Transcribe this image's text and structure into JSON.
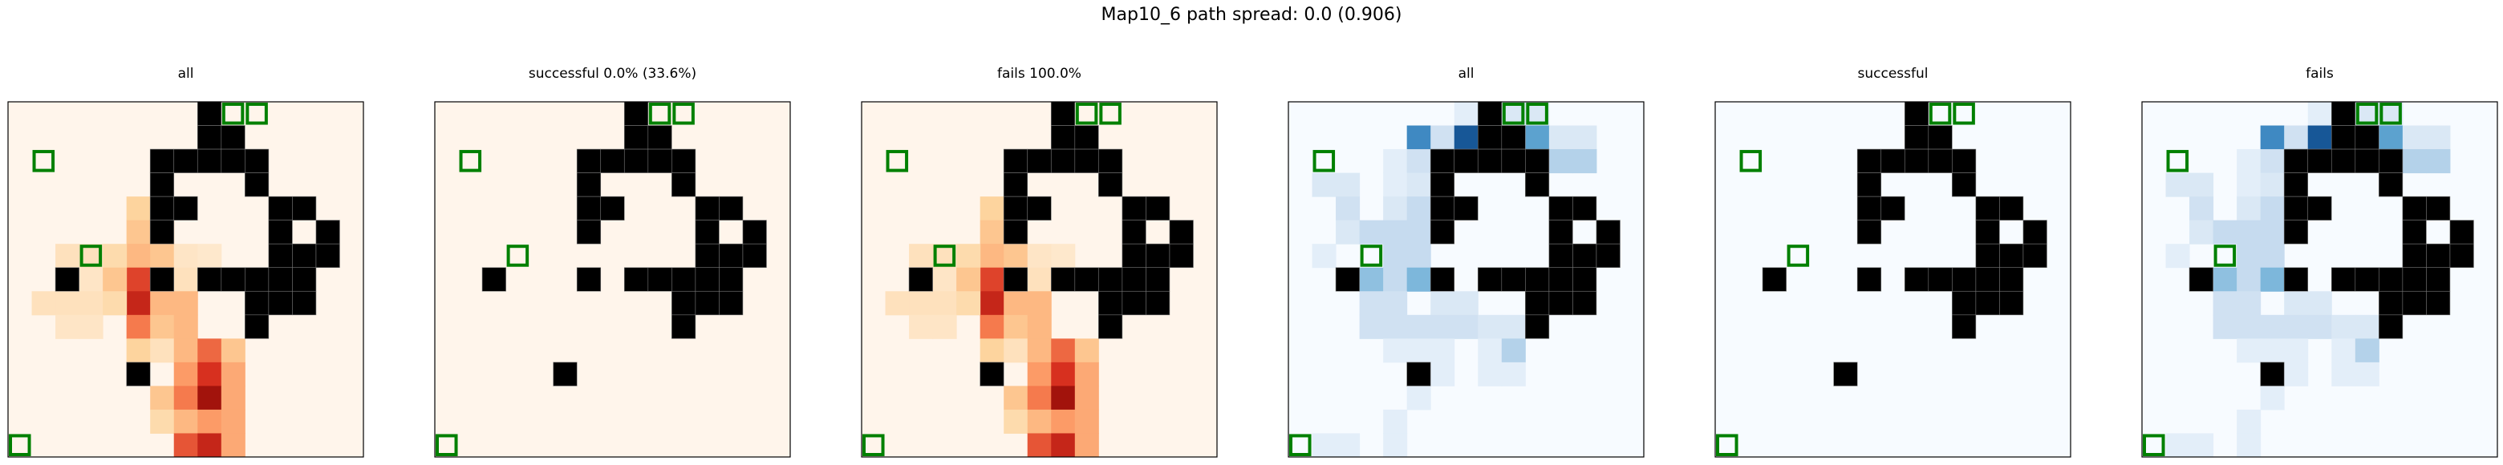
{
  "suptitle": "Map10_6 path spread: 0.0 (0.906)",
  "chart_data": {
    "type": "heatmap",
    "grid_size": 15,
    "walls": [
      [
        0,
        8
      ],
      [
        1,
        8
      ],
      [
        1,
        9
      ],
      [
        2,
        6
      ],
      [
        2,
        7
      ],
      [
        2,
        8
      ],
      [
        2,
        9
      ],
      [
        2,
        10
      ],
      [
        3,
        6
      ],
      [
        3,
        10
      ],
      [
        4,
        6
      ],
      [
        4,
        7
      ],
      [
        4,
        11
      ],
      [
        4,
        12
      ],
      [
        5,
        6
      ],
      [
        5,
        11
      ],
      [
        5,
        13
      ],
      [
        6,
        11
      ],
      [
        6,
        12
      ],
      [
        6,
        13
      ],
      [
        7,
        2
      ],
      [
        7,
        6
      ],
      [
        7,
        8
      ],
      [
        7,
        9
      ],
      [
        7,
        10
      ],
      [
        7,
        11
      ],
      [
        7,
        12
      ],
      [
        8,
        10
      ],
      [
        8,
        11
      ],
      [
        8,
        12
      ],
      [
        9,
        10
      ],
      [
        11,
        5
      ]
    ],
    "markers": [
      [
        0,
        9
      ],
      [
        0,
        10
      ],
      [
        2,
        1
      ],
      [
        6,
        3
      ],
      [
        14,
        0
      ]
    ],
    "panels": [
      {
        "title": "all",
        "colormap": "reds",
        "cells": [
          [
            4,
            5,
            0.25
          ],
          [
            5,
            5,
            0.3
          ],
          [
            6,
            5,
            0.35
          ],
          [
            7,
            5,
            0.7
          ],
          [
            8,
            5,
            0.8
          ],
          [
            8,
            6,
            0.35
          ],
          [
            4,
            6,
            0.2
          ],
          [
            5,
            6,
            0.3
          ],
          [
            6,
            6,
            0.3
          ],
          [
            6,
            4,
            0.2
          ],
          [
            6,
            3,
            0.15
          ],
          [
            6,
            2,
            0.15
          ],
          [
            7,
            3,
            0.12
          ],
          [
            7,
            4,
            0.3
          ],
          [
            8,
            1,
            0.15
          ],
          [
            8,
            2,
            0.15
          ],
          [
            8,
            3,
            0.15
          ],
          [
            8,
            4,
            0.2
          ],
          [
            9,
            2,
            0.12
          ],
          [
            9,
            3,
            0.12
          ],
          [
            6,
            7,
            0.12
          ],
          [
            6,
            8,
            0.1
          ],
          [
            7,
            7,
            0.15
          ],
          [
            8,
            7,
            0.35
          ],
          [
            9,
            5,
            0.55
          ],
          [
            9,
            6,
            0.3
          ],
          [
            9,
            7,
            0.35
          ],
          [
            10,
            5,
            0.25
          ],
          [
            10,
            6,
            0.15
          ],
          [
            10,
            7,
            0.35
          ],
          [
            10,
            8,
            0.6
          ],
          [
            10,
            9,
            0.3
          ],
          [
            11,
            7,
            0.45
          ],
          [
            11,
            8,
            0.75
          ],
          [
            11,
            9,
            0.4
          ],
          [
            12,
            6,
            0.3
          ],
          [
            12,
            7,
            0.55
          ],
          [
            12,
            8,
            0.9
          ],
          [
            12,
            9,
            0.4
          ],
          [
            13,
            6,
            0.2
          ],
          [
            13,
            7,
            0.35
          ],
          [
            13,
            8,
            0.45
          ],
          [
            13,
            9,
            0.4
          ],
          [
            14,
            7,
            0.65
          ],
          [
            14,
            8,
            0.8
          ],
          [
            14,
            9,
            0.4
          ]
        ]
      },
      {
        "title": "successful 0.0% (33.6%)",
        "colormap": "reds",
        "cells": []
      },
      {
        "title": "fails 100.0%",
        "colormap": "reds",
        "cells": [
          [
            4,
            5,
            0.25
          ],
          [
            5,
            5,
            0.3
          ],
          [
            6,
            5,
            0.35
          ],
          [
            7,
            5,
            0.7
          ],
          [
            8,
            5,
            0.8
          ],
          [
            8,
            6,
            0.35
          ],
          [
            4,
            6,
            0.2
          ],
          [
            5,
            6,
            0.3
          ],
          [
            6,
            6,
            0.3
          ],
          [
            6,
            4,
            0.2
          ],
          [
            6,
            3,
            0.15
          ],
          [
            6,
            2,
            0.15
          ],
          [
            7,
            3,
            0.12
          ],
          [
            7,
            4,
            0.3
          ],
          [
            8,
            1,
            0.15
          ],
          [
            8,
            2,
            0.15
          ],
          [
            8,
            3,
            0.15
          ],
          [
            8,
            4,
            0.2
          ],
          [
            9,
            2,
            0.12
          ],
          [
            9,
            3,
            0.12
          ],
          [
            6,
            7,
            0.12
          ],
          [
            6,
            8,
            0.1
          ],
          [
            7,
            7,
            0.15
          ],
          [
            8,
            7,
            0.35
          ],
          [
            9,
            5,
            0.55
          ],
          [
            9,
            6,
            0.3
          ],
          [
            9,
            7,
            0.35
          ],
          [
            10,
            5,
            0.25
          ],
          [
            10,
            6,
            0.15
          ],
          [
            10,
            7,
            0.35
          ],
          [
            10,
            8,
            0.6
          ],
          [
            10,
            9,
            0.3
          ],
          [
            11,
            7,
            0.45
          ],
          [
            11,
            8,
            0.75
          ],
          [
            11,
            9,
            0.4
          ],
          [
            12,
            6,
            0.3
          ],
          [
            12,
            7,
            0.55
          ],
          [
            12,
            8,
            0.9
          ],
          [
            12,
            9,
            0.4
          ],
          [
            13,
            6,
            0.2
          ],
          [
            13,
            7,
            0.35
          ],
          [
            13,
            8,
            0.45
          ],
          [
            13,
            9,
            0.4
          ],
          [
            14,
            7,
            0.65
          ],
          [
            14,
            8,
            0.8
          ],
          [
            14,
            9,
            0.4
          ]
        ]
      },
      {
        "title": "all",
        "colormap": "blues",
        "cells": [
          [
            0,
            7,
            0.1
          ],
          [
            0,
            8,
            0.2
          ],
          [
            0,
            9,
            0.15
          ],
          [
            0,
            10,
            0.15
          ],
          [
            1,
            5,
            0.65
          ],
          [
            1,
            6,
            0.2
          ],
          [
            1,
            7,
            0.85
          ],
          [
            1,
            8,
            0.95
          ],
          [
            1,
            9,
            0.15
          ],
          [
            1,
            10,
            0.55
          ],
          [
            1,
            11,
            0.15
          ],
          [
            1,
            12,
            0.15
          ],
          [
            2,
            4,
            0.1
          ],
          [
            2,
            5,
            0.2
          ],
          [
            2,
            11,
            0.3
          ],
          [
            2,
            12,
            0.3
          ],
          [
            3,
            1,
            0.15
          ],
          [
            3,
            2,
            0.15
          ],
          [
            3,
            4,
            0.1
          ],
          [
            3,
            5,
            0.15
          ],
          [
            4,
            2,
            0.2
          ],
          [
            4,
            4,
            0.15
          ],
          [
            4,
            5,
            0.25
          ],
          [
            5,
            2,
            0.15
          ],
          [
            5,
            3,
            0.25
          ],
          [
            5,
            4,
            0.25
          ],
          [
            5,
            5,
            0.25
          ],
          [
            6,
            1,
            0.1
          ],
          [
            6,
            4,
            0.25
          ],
          [
            6,
            5,
            0.25
          ],
          [
            7,
            3,
            0.4
          ],
          [
            7,
            4,
            0.25
          ],
          [
            7,
            5,
            0.45
          ],
          [
            8,
            3,
            0.2
          ],
          [
            8,
            4,
            0.2
          ],
          [
            8,
            6,
            0.15
          ],
          [
            8,
            7,
            0.15
          ],
          [
            9,
            3,
            0.2
          ],
          [
            9,
            4,
            0.2
          ],
          [
            9,
            5,
            0.2
          ],
          [
            9,
            6,
            0.2
          ],
          [
            9,
            7,
            0.2
          ],
          [
            9,
            8,
            0.15
          ],
          [
            9,
            9,
            0.15
          ],
          [
            10,
            4,
            0.1
          ],
          [
            10,
            5,
            0.1
          ],
          [
            10,
            6,
            0.1
          ],
          [
            10,
            8,
            0.1
          ],
          [
            10,
            9,
            0.3
          ],
          [
            11,
            6,
            0.1
          ],
          [
            11,
            8,
            0.1
          ],
          [
            11,
            9,
            0.1
          ],
          [
            12,
            5,
            0.1
          ],
          [
            13,
            4,
            0.1
          ],
          [
            14,
            1,
            0.1
          ],
          [
            14,
            2,
            0.1
          ],
          [
            14,
            4,
            0.1
          ]
        ]
      },
      {
        "title": "successful",
        "colormap": "blues",
        "cells": []
      },
      {
        "title": "fails",
        "colormap": "blues",
        "cells": [
          [
            0,
            7,
            0.1
          ],
          [
            0,
            8,
            0.2
          ],
          [
            0,
            9,
            0.15
          ],
          [
            0,
            10,
            0.15
          ],
          [
            1,
            5,
            0.65
          ],
          [
            1,
            6,
            0.2
          ],
          [
            1,
            7,
            0.85
          ],
          [
            1,
            8,
            0.95
          ],
          [
            1,
            9,
            0.15
          ],
          [
            1,
            10,
            0.55
          ],
          [
            1,
            11,
            0.15
          ],
          [
            1,
            12,
            0.15
          ],
          [
            2,
            4,
            0.1
          ],
          [
            2,
            5,
            0.2
          ],
          [
            2,
            11,
            0.3
          ],
          [
            2,
            12,
            0.3
          ],
          [
            3,
            1,
            0.15
          ],
          [
            3,
            2,
            0.15
          ],
          [
            3,
            4,
            0.1
          ],
          [
            3,
            5,
            0.15
          ],
          [
            4,
            2,
            0.2
          ],
          [
            4,
            4,
            0.15
          ],
          [
            4,
            5,
            0.25
          ],
          [
            5,
            2,
            0.15
          ],
          [
            5,
            3,
            0.25
          ],
          [
            5,
            4,
            0.25
          ],
          [
            5,
            5,
            0.25
          ],
          [
            6,
            1,
            0.1
          ],
          [
            6,
            4,
            0.25
          ],
          [
            6,
            5,
            0.25
          ],
          [
            7,
            3,
            0.4
          ],
          [
            7,
            4,
            0.25
          ],
          [
            7,
            5,
            0.45
          ],
          [
            8,
            3,
            0.2
          ],
          [
            8,
            4,
            0.2
          ],
          [
            8,
            6,
            0.15
          ],
          [
            8,
            7,
            0.15
          ],
          [
            9,
            3,
            0.2
          ],
          [
            9,
            4,
            0.2
          ],
          [
            9,
            5,
            0.2
          ],
          [
            9,
            6,
            0.2
          ],
          [
            9,
            7,
            0.2
          ],
          [
            9,
            8,
            0.15
          ],
          [
            9,
            9,
            0.15
          ],
          [
            10,
            4,
            0.1
          ],
          [
            10,
            5,
            0.1
          ],
          [
            10,
            6,
            0.1
          ],
          [
            10,
            8,
            0.1
          ],
          [
            10,
            9,
            0.3
          ],
          [
            11,
            6,
            0.1
          ],
          [
            11,
            8,
            0.1
          ],
          [
            11,
            9,
            0.1
          ],
          [
            12,
            5,
            0.1
          ],
          [
            13,
            4,
            0.1
          ],
          [
            14,
            1,
            0.1
          ],
          [
            14,
            2,
            0.1
          ],
          [
            14,
            4,
            0.1
          ]
        ]
      }
    ]
  },
  "colors": {
    "reds_low": "#fff5eb",
    "blues_low": "#f7fbff",
    "wall": "#000000",
    "marker": "#008000"
  }
}
